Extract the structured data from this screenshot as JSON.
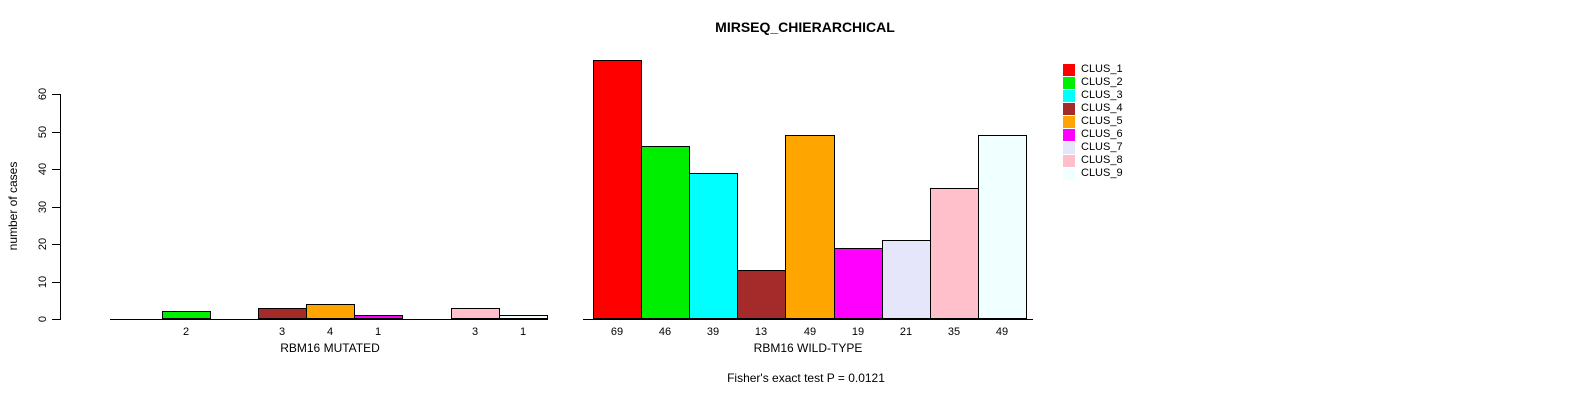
{
  "chart_data": {
    "type": "bar",
    "title": "MIRSEQ_CHIERARCHICAL",
    "ylabel": "number of cases",
    "yticks": [
      0,
      10,
      20,
      30,
      40,
      50,
      60
    ],
    "ylim": [
      0,
      69
    ],
    "grid": false,
    "legend_position": "right",
    "clusters": [
      {
        "name": "CLUS_1",
        "color": "#ff0000"
      },
      {
        "name": "CLUS_2",
        "color": "#00ee00"
      },
      {
        "name": "CLUS_3",
        "color": "#00ffff"
      },
      {
        "name": "CLUS_4",
        "color": "#a52a2a"
      },
      {
        "name": "CLUS_5",
        "color": "#ffa500"
      },
      {
        "name": "CLUS_6",
        "color": "#ff00ff"
      },
      {
        "name": "CLUS_7",
        "color": "#e6e6fa"
      },
      {
        "name": "CLUS_8",
        "color": "#ffc0cb"
      },
      {
        "name": "CLUS_9",
        "color": "#f0ffff"
      }
    ],
    "groups": [
      {
        "label": "RBM16 MUTATED",
        "values": [
          0,
          2,
          0,
          3,
          4,
          1,
          0,
          3,
          1
        ]
      },
      {
        "label": "RBM16 WILD-TYPE",
        "values": [
          69,
          46,
          39,
          13,
          49,
          19,
          21,
          35,
          49
        ]
      }
    ],
    "value_labels_shown_for_zero": false,
    "annotation": "Fisher's exact test P = 0.0121"
  }
}
